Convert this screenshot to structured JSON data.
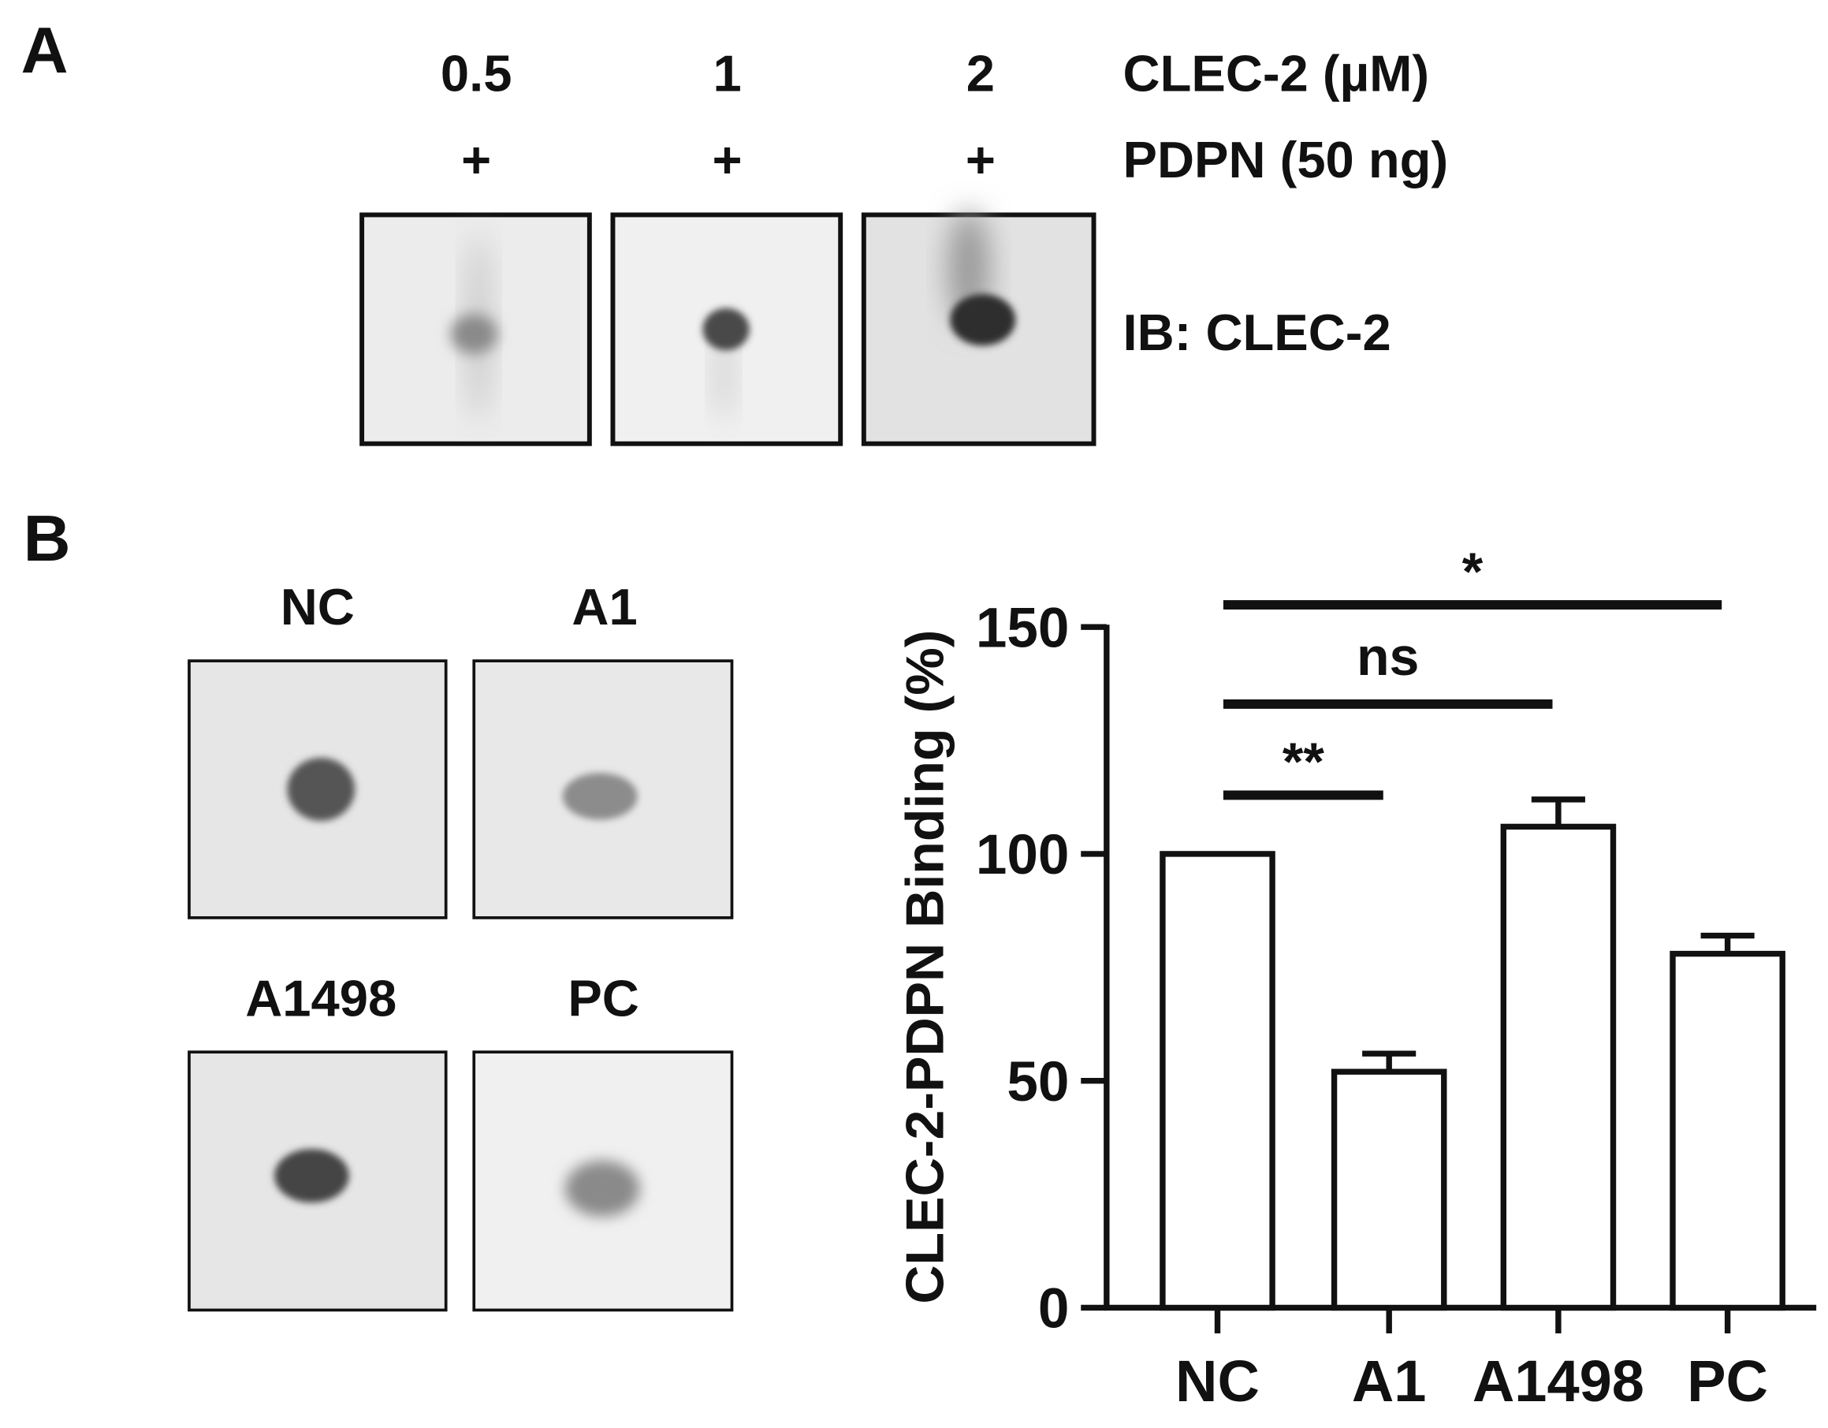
{
  "panel_a": {
    "label": "A",
    "concentrations": [
      "0.5",
      "1",
      "2"
    ],
    "plus_signs": [
      "+",
      "+",
      "+"
    ],
    "row_labels": [
      "CLEC-2 (µM)",
      "PDPN (50 ng)"
    ],
    "blot_label": "IB: CLEC-2"
  },
  "panel_b": {
    "label": "B",
    "blot_labels": [
      "NC",
      "A1",
      "A1498",
      "PC"
    ]
  },
  "chart_data": {
    "type": "bar",
    "ylabel": "CLEC-2-PDPN Binding (%)",
    "categories": [
      "NC",
      "A1",
      "A1498",
      "PC"
    ],
    "values": [
      100,
      52,
      106,
      78
    ],
    "errors": [
      0,
      4,
      6,
      4
    ],
    "color": "#ffffff",
    "ylim": [
      0,
      150
    ],
    "yticks": [
      0,
      50,
      100,
      150
    ],
    "significance": [
      "**",
      "ns",
      "*"
    ]
  }
}
